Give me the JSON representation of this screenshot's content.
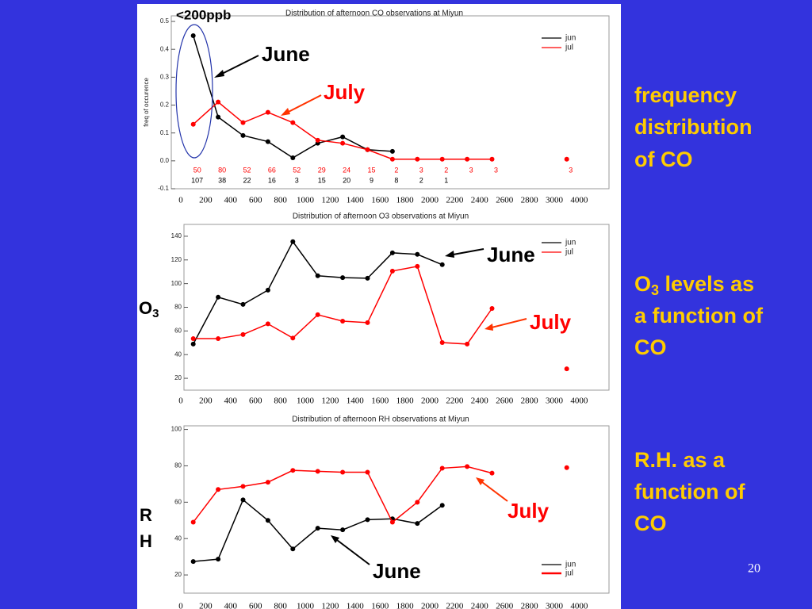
{
  "chart_data": [
    {
      "type": "line",
      "title": "Distribution of afternoon CO observations at Miyun",
      "ylabel": "freq of occurence",
      "x": [
        100,
        300,
        500,
        700,
        900,
        1100,
        1300,
        1500,
        1700,
        1900,
        2100,
        2300,
        2500,
        2700,
        3500
      ],
      "xticks": [
        0,
        200,
        400,
        600,
        800,
        1000,
        1200,
        1400,
        1600,
        1800,
        2000,
        2200,
        2400,
        2600,
        2800,
        3000,
        4000
      ],
      "ylim": [
        -0.1,
        0.52
      ],
      "yticks": [
        -0.1,
        {
          "value": 0,
          "label": "0.0"
        },
        0.1,
        0.2,
        0.3,
        0.4,
        0.5
      ],
      "legend": "upper right",
      "series": [
        {
          "name": "jun",
          "color": "#000000",
          "values": [
            0.449,
            0.157,
            0.091,
            0.069,
            0.011,
            0.063,
            0.086,
            0.04,
            0.034,
            null,
            null,
            null,
            null,
            null,
            null
          ],
          "counts": [
            107,
            38,
            22,
            16,
            3,
            15,
            20,
            9,
            8,
            2,
            1,
            null,
            null,
            null,
            null
          ]
        },
        {
          "name": "jul",
          "color": "#ff0000",
          "values": [
            0.131,
            0.211,
            0.137,
            0.174,
            0.137,
            0.074,
            0.063,
            0.04,
            0.006,
            0.006,
            0.006,
            0.006,
            0.006,
            null,
            0.006
          ],
          "counts": [
            50,
            80,
            52,
            66,
            52,
            29,
            24,
            15,
            2,
            3,
            2,
            3,
            3,
            null,
            3
          ]
        }
      ],
      "annotations": [
        "<200ppb",
        "June",
        "July"
      ]
    },
    {
      "type": "line",
      "title": "Distribution of afternoon O3 observations at Miyun",
      "x": [
        100,
        300,
        500,
        700,
        900,
        1100,
        1300,
        1500,
        1700,
        1900,
        2100,
        2300,
        2500,
        2700,
        3500
      ],
      "xticks": [
        0,
        200,
        400,
        600,
        800,
        1000,
        1200,
        1400,
        1600,
        1800,
        2000,
        2200,
        2400,
        2600,
        2800,
        3000,
        4000
      ],
      "ylim": [
        10,
        150
      ],
      "yticks": [
        20,
        40,
        60,
        80,
        100,
        120,
        140
      ],
      "legend": "upper right",
      "series": [
        {
          "name": "jun",
          "color": "#000000",
          "values": [
            48.9,
            88.5,
            82.4,
            94.5,
            135.4,
            106.6,
            105,
            104.5,
            126,
            124.7,
            116,
            null,
            null,
            null,
            null
          ]
        },
        {
          "name": "jul",
          "color": "#ff0000",
          "values": [
            53.5,
            53.5,
            57,
            66,
            54,
            73.7,
            68.3,
            67,
            110.6,
            114.6,
            50.2,
            48.9,
            79,
            null,
            28
          ]
        }
      ],
      "annotations": [
        "June",
        "July"
      ]
    },
    {
      "type": "line",
      "title": "Distribution of afternoon RH observations at Miyun",
      "x": [
        100,
        300,
        500,
        700,
        900,
        1100,
        1300,
        1500,
        1700,
        1900,
        2100,
        2300,
        2500,
        2700,
        3500
      ],
      "xticks": [
        0,
        200,
        400,
        600,
        800,
        1000,
        1200,
        1400,
        1600,
        1800,
        2000,
        2200,
        2400,
        2600,
        2800,
        3000,
        4000
      ],
      "ylim": [
        10,
        102
      ],
      "yticks": [
        20,
        40,
        60,
        80,
        100
      ],
      "legend": "lower right",
      "series": [
        {
          "name": "jun",
          "color": "#000000",
          "values": [
            27.4,
            28.7,
            61.3,
            50,
            34.3,
            45.7,
            44.8,
            50.4,
            50.9,
            48.3,
            58.3,
            null,
            null,
            null,
            null
          ]
        },
        {
          "name": "jul",
          "color": "#ff0000",
          "values": [
            49,
            67,
            68.7,
            71,
            77.5,
            77,
            76.5,
            76.5,
            49,
            60,
            78.7,
            79.6,
            76,
            null,
            79
          ]
        }
      ],
      "annotations": [
        "July",
        "June"
      ]
    }
  ],
  "labels": {
    "o3": {
      "base": "O",
      "sub": "3"
    },
    "rh": [
      "R",
      "H"
    ]
  },
  "captions": [
    [
      "frequency",
      "distribution",
      "of CO"
    ],
    [
      {
        "base": "O",
        "sub": "3",
        "rest": " levels as"
      },
      "a function of",
      "CO"
    ],
    [
      "R.H. as a",
      "function of",
      "CO"
    ]
  ],
  "page_number": 20
}
